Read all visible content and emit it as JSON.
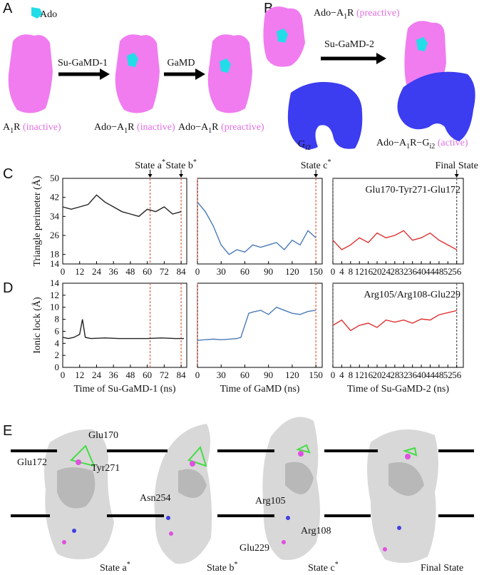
{
  "panel_labels": [
    "A",
    "B",
    "C",
    "D",
    "E"
  ],
  "panel_a": {
    "ligand": "Ado",
    "steps": [
      "Su-GaMD-1",
      "GaMD"
    ],
    "states": [
      [
        "A",
        "1",
        "R",
        "(inactive)"
      ],
      [
        "Ado−A",
        "1",
        "R",
        "(inactive)"
      ],
      [
        "Ado−A",
        "1",
        "R",
        "(preactive)"
      ]
    ]
  },
  "panel_b": {
    "state_start": [
      "Ado−A",
      "1",
      "R",
      "(preactive)"
    ],
    "step": "Su-GaMD-2",
    "g_protein": [
      "G",
      "i2"
    ],
    "state_end": [
      "Ado−A",
      "1",
      "R−G",
      "i2",
      "(active)"
    ]
  },
  "chart_data": [
    {
      "type": "line",
      "ylabel": "Triangle perimeter (Å)",
      "xlim": [
        0,
        88
      ],
      "xticks": [
        0,
        12,
        24,
        36,
        48,
        60,
        72,
        84
      ],
      "ylim": [
        14,
        50
      ],
      "yticks": [
        50,
        42,
        34,
        26,
        18,
        14
      ],
      "color": "#222222",
      "x": [
        0,
        6,
        12,
        18,
        24,
        30,
        36,
        42,
        48,
        54,
        60,
        66,
        72,
        78,
        84
      ],
      "values": [
        38,
        37,
        38,
        39,
        43,
        40,
        38,
        36,
        35,
        34,
        37,
        36,
        38,
        35,
        36
      ],
      "vlines": [
        {
          "x": 62,
          "color": "#e06040"
        },
        {
          "x": 84,
          "color": "#e06040"
        }
      ],
      "markers": [
        {
          "x": 62,
          "text": "State a",
          "sup": "*"
        },
        {
          "x": 84,
          "text": "State b",
          "sup": "*"
        }
      ]
    },
    {
      "type": "line",
      "xlim": [
        0,
        158
      ],
      "xticks": [
        0,
        30,
        60,
        90,
        120,
        150
      ],
      "ylim": [
        14,
        50
      ],
      "color": "#4a7ab8",
      "x": [
        0,
        10,
        20,
        30,
        40,
        50,
        60,
        70,
        80,
        90,
        100,
        110,
        120,
        130,
        140,
        150
      ],
      "values": [
        40,
        36,
        30,
        22,
        18,
        20,
        19,
        22,
        21,
        22,
        23,
        20,
        24,
        22,
        28,
        25
      ],
      "vlines": [
        {
          "x": 0,
          "color": "#e06040"
        },
        {
          "x": 150,
          "color": "#e06040"
        }
      ],
      "markers": [
        {
          "x": 150,
          "text": "State c",
          "sup": "*"
        }
      ]
    },
    {
      "type": "line",
      "xlim": [
        0,
        59
      ],
      "xticks": [
        0,
        4,
        8,
        12,
        16,
        20,
        24,
        28,
        32,
        36,
        40,
        44,
        48,
        52,
        56
      ],
      "ylim": [
        14,
        50
      ],
      "color": "#e03030",
      "x": [
        0,
        4,
        8,
        12,
        16,
        20,
        24,
        28,
        32,
        36,
        40,
        44,
        48,
        52,
        56
      ],
      "values": [
        24,
        20,
        22,
        25,
        23,
        27,
        25,
        26,
        28,
        24,
        25,
        27,
        24,
        22,
        20
      ],
      "vlines": [
        {
          "x": 0,
          "color": "#555555"
        },
        {
          "x": 56,
          "color": "#555555"
        }
      ],
      "markers": [
        {
          "x": 56,
          "text": "Final State"
        }
      ],
      "annotation": "Glu170-Tyr271-Glu172"
    },
    {
      "type": "line",
      "ylabel": "Ionic lock (Å)",
      "xlabel": "Time of Su-GaMD-1 (ns)",
      "xlim": [
        0,
        88
      ],
      "xticks": [
        0,
        12,
        24,
        36,
        48,
        60,
        72,
        84
      ],
      "ylim": [
        0,
        14
      ],
      "yticks": [
        0,
        2,
        4,
        6,
        8,
        10,
        12,
        14
      ],
      "color": "#222222",
      "x": [
        0,
        4,
        8,
        12,
        14,
        16,
        20,
        30,
        40,
        50,
        60,
        70,
        80,
        86
      ],
      "values": [
        5,
        4.8,
        5,
        5.5,
        8,
        5,
        4.8,
        4.9,
        4.8,
        4.8,
        4.8,
        4.9,
        4.8,
        4.8
      ],
      "vlines": [
        {
          "x": 62,
          "color": "#e06040"
        },
        {
          "x": 84,
          "color": "#e06040"
        }
      ]
    },
    {
      "type": "line",
      "xlabel": "Time of GaMD (ns)",
      "xlim": [
        0,
        158
      ],
      "xticks": [
        0,
        30,
        60,
        90,
        120,
        150
      ],
      "ylim": [
        0,
        14
      ],
      "color": "#4a7ab8",
      "x": [
        0,
        10,
        20,
        30,
        40,
        50,
        55,
        60,
        65,
        70,
        80,
        90,
        100,
        110,
        120,
        130,
        140,
        150
      ],
      "values": [
        4.5,
        4.6,
        4.7,
        4.6,
        4.7,
        4.8,
        5,
        7,
        9,
        9.2,
        9.5,
        8.8,
        10,
        9.5,
        9,
        8.8,
        9.3,
        9.5
      ],
      "vlines": [
        {
          "x": 0,
          "color": "#e06040"
        },
        {
          "x": 150,
          "color": "#e06040"
        }
      ]
    },
    {
      "type": "line",
      "xlabel": "Time of Su-GaMD-2 (ns)",
      "xlim": [
        0,
        59
      ],
      "xticks": [
        0,
        4,
        8,
        12,
        16,
        20,
        24,
        28,
        32,
        36,
        40,
        44,
        48,
        52,
        56
      ],
      "ylim": [
        4,
        12
      ],
      "color": "#e03030",
      "x": [
        0,
        4,
        8,
        12,
        16,
        20,
        24,
        28,
        32,
        36,
        40,
        44,
        48,
        52,
        56
      ],
      "values": [
        8,
        8.5,
        7.5,
        8,
        8.2,
        7.8,
        8.5,
        8.3,
        8.5,
        8.2,
        8.6,
        8.5,
        9,
        9.2,
        9.4
      ],
      "vlines": [
        {
          "x": 0,
          "color": "#555555"
        },
        {
          "x": 56,
          "color": "#555555"
        }
      ],
      "annotation": "Arg105/Arg108-Glu229"
    }
  ],
  "panel_e": {
    "residues": [
      "Glu170",
      "Glu172",
      "Tyr271",
      "Asn254",
      "Arg105",
      "Arg108",
      "Glu229"
    ],
    "states": [
      {
        "text": "State a",
        "sup": "*"
      },
      {
        "text": "State b",
        "sup": "*"
      },
      {
        "text": "State c",
        "sup": "*"
      },
      {
        "text": "Final State"
      }
    ]
  }
}
